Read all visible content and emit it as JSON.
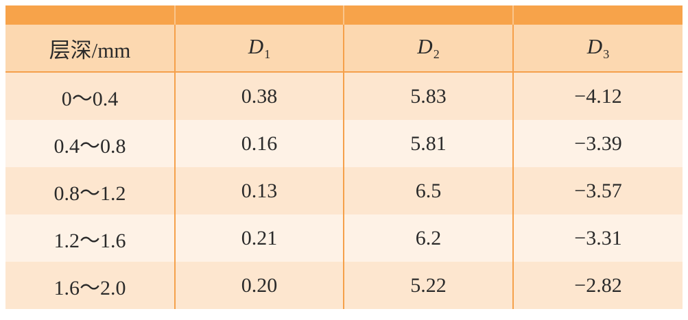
{
  "table": {
    "headers": [
      {
        "text": "层深/mm"
      },
      {
        "sym": "D",
        "sub": "1"
      },
      {
        "sym": "D",
        "sub": "2"
      },
      {
        "sym": "D",
        "sub": "3"
      }
    ],
    "rows": [
      [
        "0～0.4",
        "0.38",
        "5.83",
        "−4.12"
      ],
      [
        "0.4～0.8",
        "0.16",
        "5.81",
        "−3.39"
      ],
      [
        "0.8～1.2",
        "0.13",
        "6.5",
        "−3.57"
      ],
      [
        "1.2～1.6",
        "0.21",
        "6.2",
        "−3.31"
      ],
      [
        "1.6～2.0",
        "0.20",
        "5.22",
        "−2.82"
      ]
    ]
  },
  "colors": {
    "top_bar": "#f7a34a",
    "header_bg": "#fcd8b0",
    "row_dark": "#fde6cf",
    "row_light": "#fef2e6",
    "grid_line": "#f5a04a"
  }
}
